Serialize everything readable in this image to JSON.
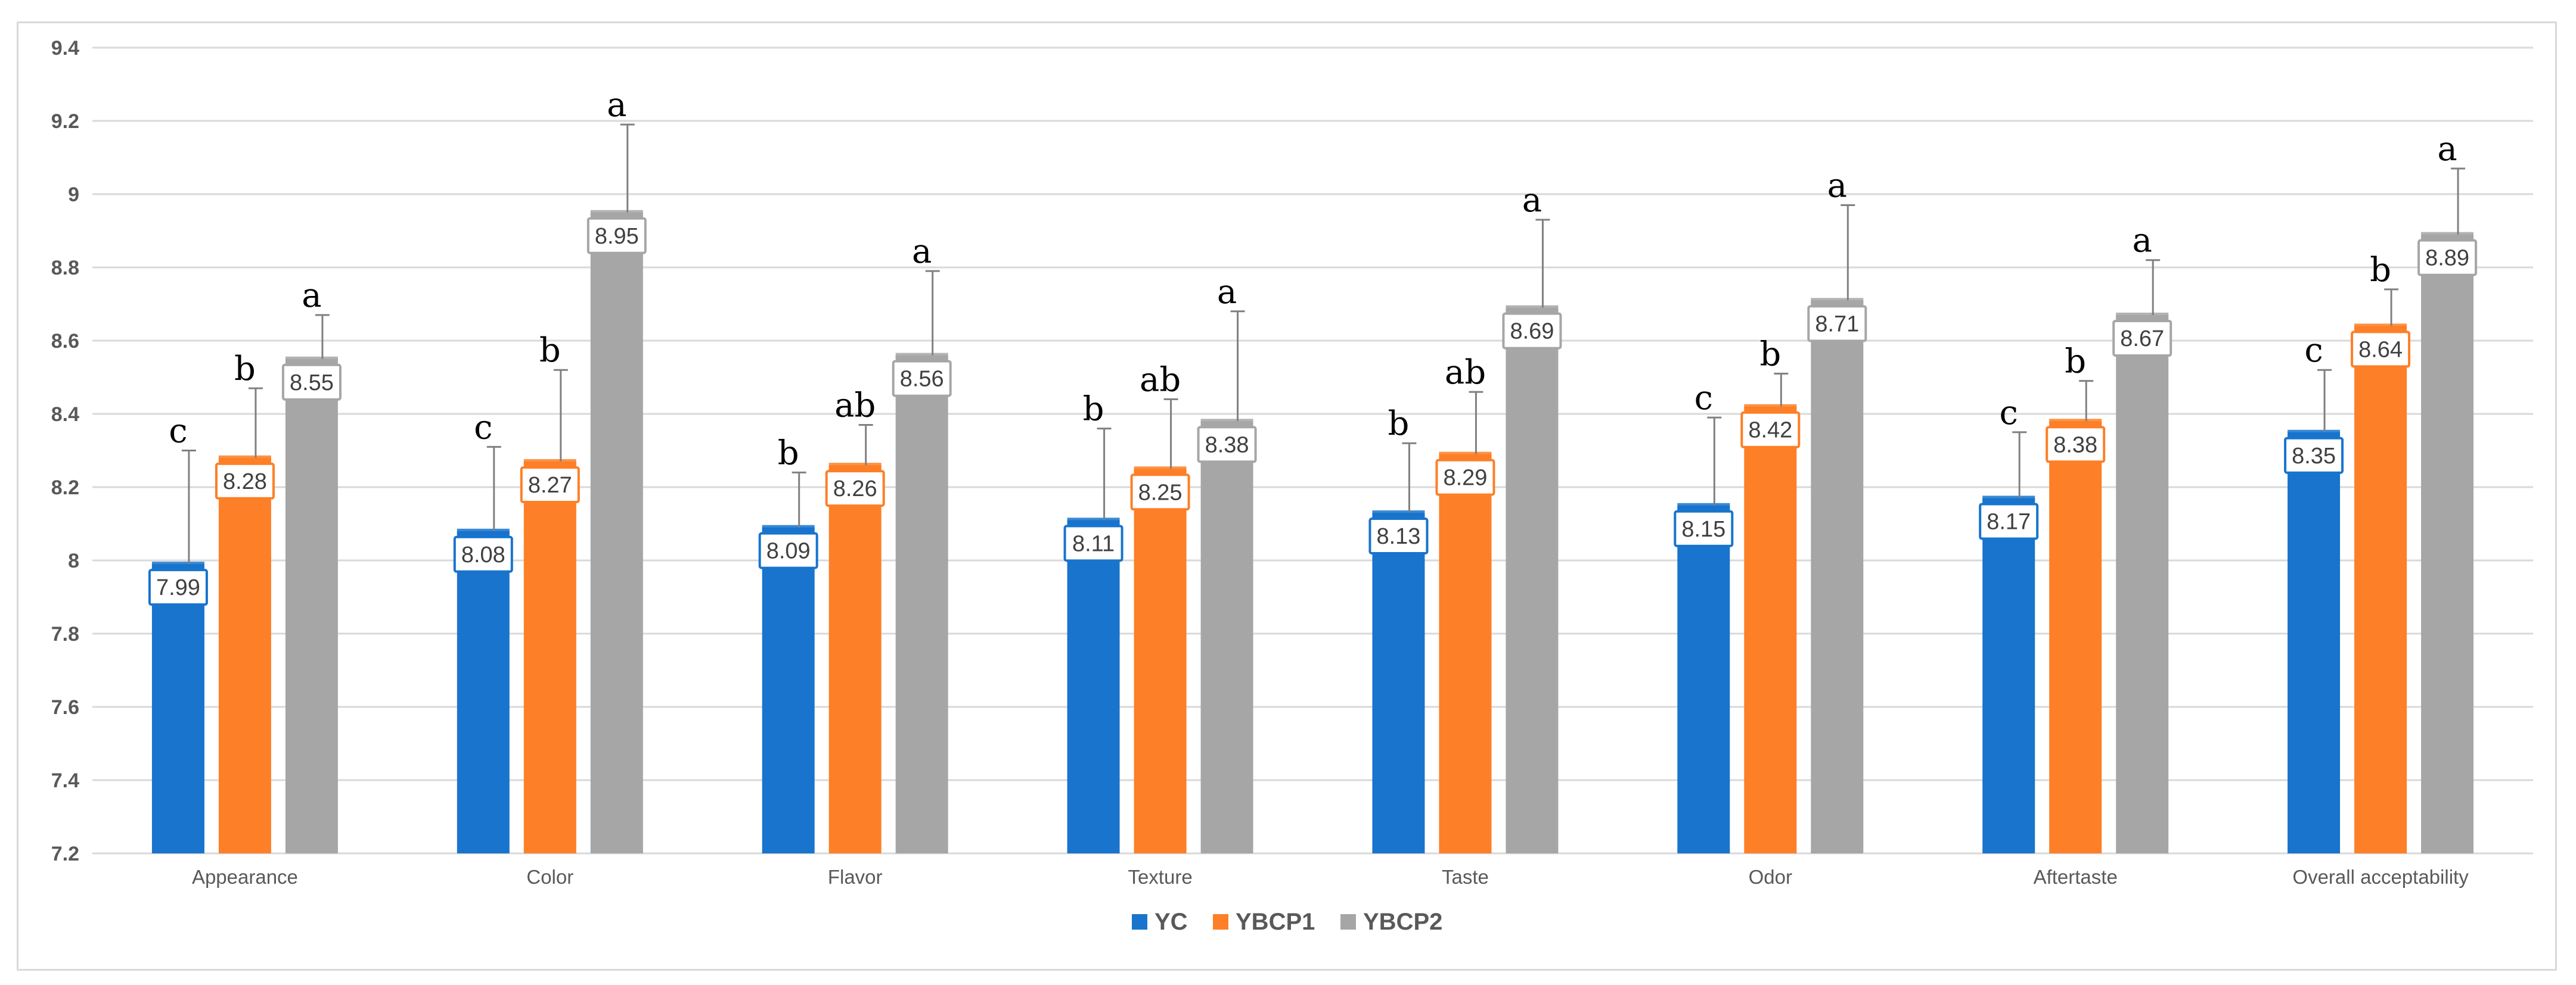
{
  "chart_data": {
    "type": "bar",
    "title": "",
    "xlabel": "",
    "ylabel": "",
    "ylim": [
      7.2,
      9.4
    ],
    "yticks": [
      "7.2",
      "7.4",
      "7.6",
      "7.8",
      "8",
      "8.2",
      "8.4",
      "8.6",
      "8.8",
      "9",
      "9.2",
      "9.4"
    ],
    "grid": true,
    "legend_position": "bottom-center",
    "categories": [
      "Appearance",
      "Color",
      "Flavor",
      "Texture",
      "Taste",
      "Odor",
      "Aftertaste",
      "Overall acceptability"
    ],
    "series": [
      {
        "name": "YC",
        "color": "#1874cd",
        "values": [
          7.99,
          8.08,
          8.09,
          8.11,
          8.13,
          8.15,
          8.17,
          8.35
        ],
        "labels": [
          "7.99",
          "8.08",
          "8.09",
          "8.11",
          "8.13",
          "8.15",
          "8.17",
          "8.35"
        ],
        "error_tops": [
          8.3,
          8.31,
          8.24,
          8.36,
          8.32,
          8.39,
          8.35,
          8.52
        ],
        "significance": [
          "c",
          "c",
          "b",
          "b",
          "b",
          "c",
          "c",
          "c"
        ]
      },
      {
        "name": "YBCP1",
        "color": "#fd7f27",
        "values": [
          8.28,
          8.27,
          8.26,
          8.25,
          8.29,
          8.42,
          8.38,
          8.64
        ],
        "labels": [
          "8.28",
          "8.27",
          "8.26",
          "8.25",
          "8.29",
          "8.42",
          "8.38",
          "8.64"
        ],
        "error_tops": [
          8.47,
          8.52,
          8.37,
          8.44,
          8.46,
          8.51,
          8.49,
          8.74
        ],
        "significance": [
          "b",
          "b",
          "ab",
          "ab",
          "ab",
          "b",
          "b",
          "b"
        ]
      },
      {
        "name": "YBCP2",
        "color": "#a6a6a6",
        "values": [
          8.55,
          8.95,
          8.56,
          8.38,
          8.69,
          8.71,
          8.67,
          8.89
        ],
        "labels": [
          "8.55",
          "8.95",
          "8.56",
          "8.38",
          "8.69",
          "8.71",
          "8.67",
          "8.89"
        ],
        "error_tops": [
          8.67,
          9.19,
          8.79,
          8.68,
          8.93,
          8.97,
          8.82,
          9.07
        ],
        "significance": [
          "a",
          "a",
          "a",
          "a",
          "a",
          "a",
          "a",
          "a"
        ]
      }
    ]
  }
}
